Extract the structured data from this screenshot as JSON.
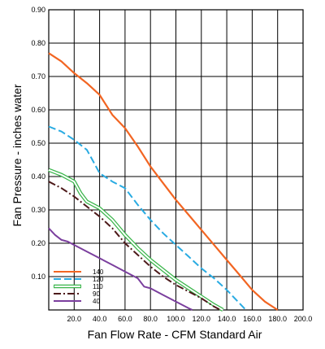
{
  "chart_data": {
    "type": "line",
    "xlabel": "Fan Flow Rate - CFM Standard Air",
    "ylabel": "Fan Pressure - inches water",
    "xlim": [
      0,
      200
    ],
    "ylim": [
      0,
      0.9
    ],
    "x_ticks": [
      "20.0",
      "40.0",
      "60.0",
      "80.0",
      "100.0",
      "120.0",
      "140.0",
      "160.0",
      "180.0",
      "200.0"
    ],
    "y_ticks": [
      "0.10",
      "0.20",
      "0.30",
      "0.40",
      "0.50",
      "0.60",
      "0.70",
      "0.80",
      "0.90"
    ],
    "grid": true,
    "legend_position": "bottom-left",
    "series": [
      {
        "name": "140",
        "color": "#f26522",
        "style": "solid",
        "points": [
          [
            0,
            0.77
          ],
          [
            10,
            0.745
          ],
          [
            20,
            0.71
          ],
          [
            30,
            0.68
          ],
          [
            40,
            0.645
          ],
          [
            50,
            0.585
          ],
          [
            60,
            0.545
          ],
          [
            70,
            0.49
          ],
          [
            80,
            0.43
          ],
          [
            90,
            0.38
          ],
          [
            100,
            0.33
          ],
          [
            110,
            0.285
          ],
          [
            120,
            0.24
          ],
          [
            130,
            0.195
          ],
          [
            140,
            0.15
          ],
          [
            150,
            0.105
          ],
          [
            160,
            0.06
          ],
          [
            170,
            0.025
          ],
          [
            180,
            0.0
          ]
        ]
      },
      {
        "name": "120",
        "color": "#29abe2",
        "style": "dashed",
        "points": [
          [
            0,
            0.55
          ],
          [
            10,
            0.535
          ],
          [
            20,
            0.51
          ],
          [
            30,
            0.48
          ],
          [
            35,
            0.445
          ],
          [
            40,
            0.41
          ],
          [
            50,
            0.385
          ],
          [
            60,
            0.365
          ],
          [
            70,
            0.315
          ],
          [
            80,
            0.27
          ],
          [
            90,
            0.23
          ],
          [
            100,
            0.195
          ],
          [
            110,
            0.16
          ],
          [
            120,
            0.125
          ],
          [
            130,
            0.095
          ],
          [
            140,
            0.06
          ],
          [
            150,
            0.02
          ],
          [
            155,
            0.0
          ]
        ]
      },
      {
        "name": "110",
        "color": "#39b54a",
        "style": "double",
        "points": [
          [
            0,
            0.42
          ],
          [
            10,
            0.405
          ],
          [
            20,
            0.385
          ],
          [
            25,
            0.35
          ],
          [
            30,
            0.325
          ],
          [
            40,
            0.305
          ],
          [
            50,
            0.27
          ],
          [
            60,
            0.225
          ],
          [
            70,
            0.185
          ],
          [
            80,
            0.15
          ],
          [
            90,
            0.12
          ],
          [
            100,
            0.09
          ],
          [
            110,
            0.065
          ],
          [
            120,
            0.04
          ],
          [
            130,
            0.015
          ],
          [
            137,
            0.0
          ]
        ]
      },
      {
        "name": "90",
        "color": "#4d1a1a",
        "style": "dashdot",
        "points": [
          [
            0,
            0.385
          ],
          [
            10,
            0.365
          ],
          [
            20,
            0.34
          ],
          [
            30,
            0.31
          ],
          [
            40,
            0.28
          ],
          [
            50,
            0.245
          ],
          [
            60,
            0.2
          ],
          [
            70,
            0.165
          ],
          [
            80,
            0.13
          ],
          [
            90,
            0.1
          ],
          [
            100,
            0.075
          ],
          [
            110,
            0.055
          ],
          [
            120,
            0.035
          ],
          [
            130,
            0.01
          ],
          [
            135,
            0.0
          ]
        ]
      },
      {
        "name": "40",
        "color": "#7b3f9e",
        "style": "solid",
        "points": [
          [
            0,
            0.245
          ],
          [
            5,
            0.225
          ],
          [
            10,
            0.21
          ],
          [
            15,
            0.205
          ],
          [
            20,
            0.195
          ],
          [
            30,
            0.175
          ],
          [
            40,
            0.155
          ],
          [
            50,
            0.135
          ],
          [
            60,
            0.115
          ],
          [
            70,
            0.095
          ],
          [
            75,
            0.07
          ],
          [
            80,
            0.065
          ],
          [
            90,
            0.045
          ],
          [
            100,
            0.025
          ],
          [
            110,
            0.005
          ],
          [
            113,
            0.0
          ]
        ]
      }
    ]
  }
}
